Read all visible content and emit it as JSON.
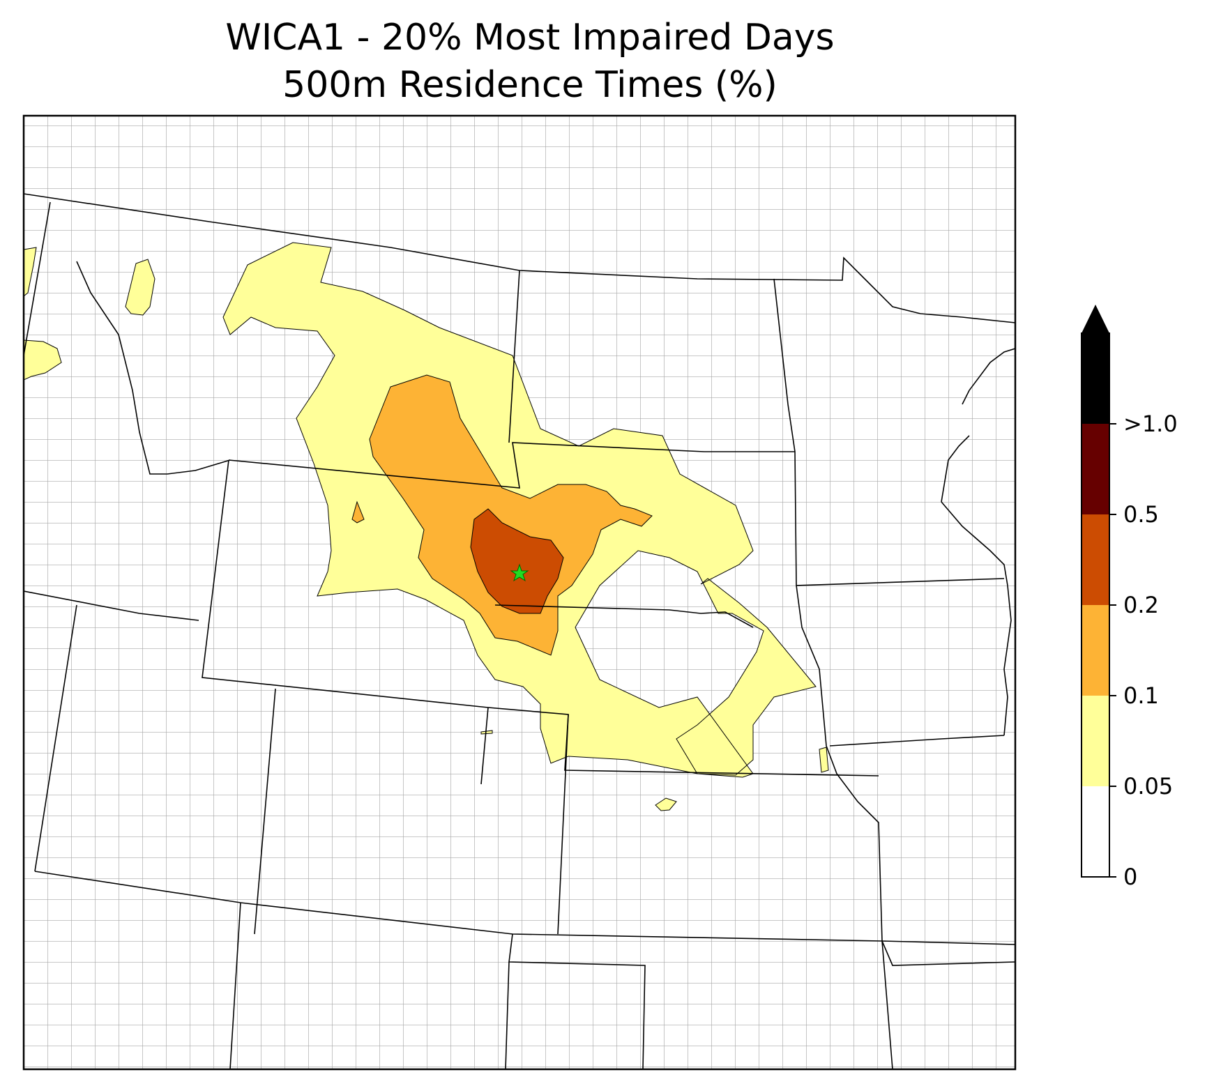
{
  "title": {
    "line1": "WICA1 - 20% Most Impaired Days",
    "line2": "500m Residence Times (%)"
  },
  "legend": {
    "unit": "%",
    "extend": "max",
    "levels": [
      {
        "from": "0",
        "to": "0.05",
        "color": "#ffffff"
      },
      {
        "from": "0.05",
        "to": "0.1",
        "color": "#ffff99"
      },
      {
        "from": "0.1",
        "to": "0.2",
        "color": "#fdb335"
      },
      {
        "from": "0.2",
        "to": "0.5",
        "color": "#cc4c02"
      },
      {
        "from": "0.5",
        "to": ">1.0",
        "color": "#660000"
      },
      {
        "from": ">1.0",
        "to": "",
        "color": "#000000"
      }
    ],
    "tick_labels": [
      "0",
      "0.05",
      "0.1",
      "0.2",
      "0.5",
      ">1.0"
    ]
  },
  "map": {
    "site_marker": "star-icon",
    "site_color": "#22dd22",
    "boundary_color": "#000000",
    "county_color": "#a0a0a0"
  }
}
